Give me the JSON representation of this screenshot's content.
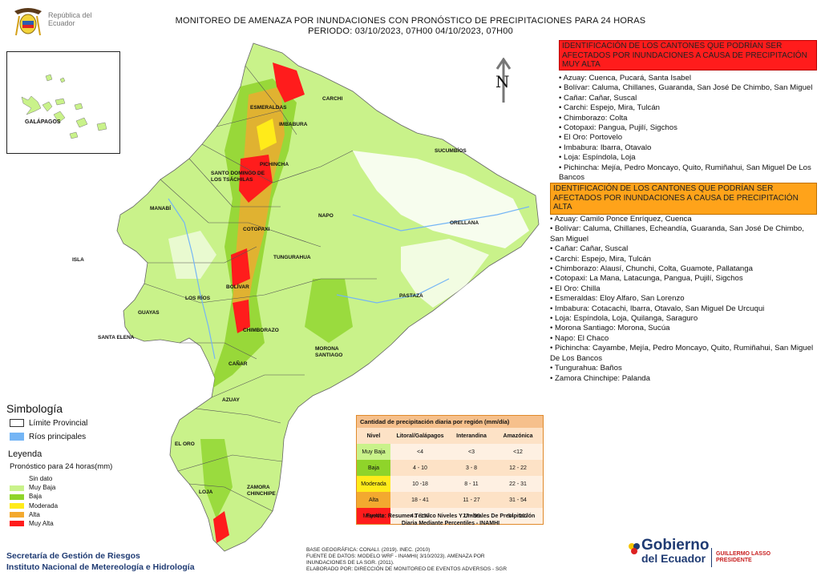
{
  "header": {
    "country_logo_text": "República del Ecuador",
    "title": "MONITOREO DE AMENAZA POR INUNDACIONES  CON PRONÓSTICO DE  PRECIPITACIONES PARA 24 HORAS",
    "period": "PERIODO: 03/10/2023, 07H00 04/10/2023, 07H00"
  },
  "map": {
    "north_label": "N",
    "galapagos_label": "GALÁPAGOS",
    "provinces": [
      "CARCHI",
      "ESMERALDAS",
      "IMBABURA",
      "SUCUMBÍOS",
      "PICHINCHA",
      "SANTO DOMINGO DE LOS TSÁCHILAS",
      "MANABÍ",
      "NAPO",
      "ORELLANA",
      "COTOPAXI",
      "ISLA",
      "TUNGURAHUA",
      "BOLÍVAR",
      "LOS RÍOS",
      "PASTAZA",
      "GUAYAS",
      "CHIMBORAZO",
      "SANTA ELENA",
      "MORONA SANTIAGO",
      "CAÑAR",
      "AZUAY",
      "EL ORO",
      "LOJA",
      "ZAMORA CHINCHIPE"
    ]
  },
  "muy_alta": {
    "title": "IDENTIFICACIÓN DE LOS CANTONES QUE PODRÍAN SER AFECTADOS POR INUNDACIONES  A CAUSA DE PRECIPITACIÓN MUY ALTA",
    "items": [
      "• Azuay: Cuenca, Pucará, Santa Isabel",
      "• Bolívar: Caluma, Chillanes, Guaranda, San José De Chimbo, San Miguel",
      "• Cañar: Cañar, Suscal",
      "• Carchi: Espejo, Mira, Tulcán",
      "• Chimborazo: Colta",
      "• Cotopaxi: Pangua, Pujilí, Sigchos",
      "• El Oro: Portovelo",
      "• Imbabura: Ibarra, Otavalo",
      "• Loja: Espíndola, Loja",
      "• Pichincha: Mejía, Pedro Moncayo, Quito, Rumiñahui, San Miguel De Los Bancos"
    ]
  },
  "alta": {
    "title": "IDENTIFICACIÓN DE LOS CANTONES QUE  PODRÍAN SER AFECTADOS POR INUNDACIONES  A CAUSA DE PRECIPITACIÓN ALTA",
    "items": [
      "• Azuay: Camilo Ponce Enríquez, Cuenca",
      "• Bolívar: Caluma, Chillanes, Echeandía, Guaranda, San José De Chimbo, San Miguel",
      "• Cañar: Cañar, Suscal",
      "• Carchi: Espejo, Mira, Tulcán",
      "• Chimborazo: Alausí, Chunchi, Colta, Guamote, Pallatanga",
      "• Cotopaxi: La Mana, Latacunga, Pangua, Pujilí, Sigchos",
      "• El Oro: Chilla",
      "• Esmeraldas: Eloy Alfaro, San Lorenzo",
      "• Imbabura: Cotacachi, Ibarra, Otavalo, San Miguel De Urcuqui",
      "• Loja: Espíndola, Loja, Quilanga, Saraguro",
      "• Morona Santiago: Morona, Sucúa",
      "• Napo: El Chaco",
      "• Pichincha: Cayambe, Mejía, Pedro Moncayo, Quito, Rumiñahui, San Miguel De Los Bancos",
      "• Tungurahua: Baños",
      "• Zamora Chinchipe: Palanda"
    ]
  },
  "simbologia": {
    "title": "Simbología",
    "items": [
      {
        "label": "Límite Provincial",
        "color": "#ffffff"
      },
      {
        "label": "Ríos principales",
        "color": "#74b5f5"
      }
    ]
  },
  "leyenda": {
    "title": "Leyenda",
    "subtitle": "Pronóstico para 24 horas(mm)",
    "items": [
      {
        "label": "Sin dato",
        "color": "#ffffff"
      },
      {
        "label": "Muy Baja",
        "color": "#c9f28a"
      },
      {
        "label": "Baja",
        "color": "#8fd42a"
      },
      {
        "label": "Moderada",
        "color": "#ffeb1a"
      },
      {
        "label": "Alta",
        "color": "#f3a92f"
      },
      {
        "label": "Muy Alta",
        "color": "#ff1c1c"
      }
    ]
  },
  "precip_table": {
    "title": "Cantidad de precipitación diaria por región (mm/día)",
    "headers": [
      "Nivel",
      "Litoral/Galápagos",
      "Interandina",
      "Amazónica"
    ],
    "rows": [
      {
        "nivel": "Muy Baja",
        "color": "#c9f28a",
        "litoral": "<4",
        "interandina": "<3",
        "amazonica": "<12"
      },
      {
        "nivel": "Baja",
        "color": "#8fd42a",
        "litoral": "4 - 10",
        "interandina": "3 - 8",
        "amazonica": "12 - 22"
      },
      {
        "nivel": "Moderada",
        "color": "#ffeb1a",
        "litoral": "10 -18",
        "interandina": "8 - 11",
        "amazonica": "22 - 31"
      },
      {
        "nivel": "Alta",
        "color": "#f3a92f",
        "litoral": "18 - 41",
        "interandina": "11 - 27",
        "amazonica": "31 - 54"
      },
      {
        "nivel": "Muy Alta",
        "color": "#ff1c1c",
        "litoral": "41 -157",
        "interandina": "27 - 99",
        "amazonica": "54 - 167"
      }
    ],
    "source": "Fuente: Resumen Técnico Niveles Y Umbrales De Precipitación Diaria Mediante Percentiles - INAMHI"
  },
  "footer": {
    "org1": "Secretaría de Gestión de Riesgos",
    "org2": "Instituto Nacional de Metereología e Hidrología",
    "meta": [
      "BASE GEOGRÁFICA: CONALI. (2019). INEC. (2010)",
      "FUENTE DE DATOS: MODELO WRF - INAMHI( 3/10/2023).  AMENAZA POR INUNDACIONES DE LA SGR. (2011).",
      "ELABORADO POR: DIRECCIÓN DE MONITOREO DE EVENTOS ADVERSOS - SGR"
    ],
    "gob1": "Gobierno",
    "gob2": "del Ecuador",
    "pres_name": "GUILLERMO LASSO",
    "pres_title": "PRESIDENTE"
  }
}
